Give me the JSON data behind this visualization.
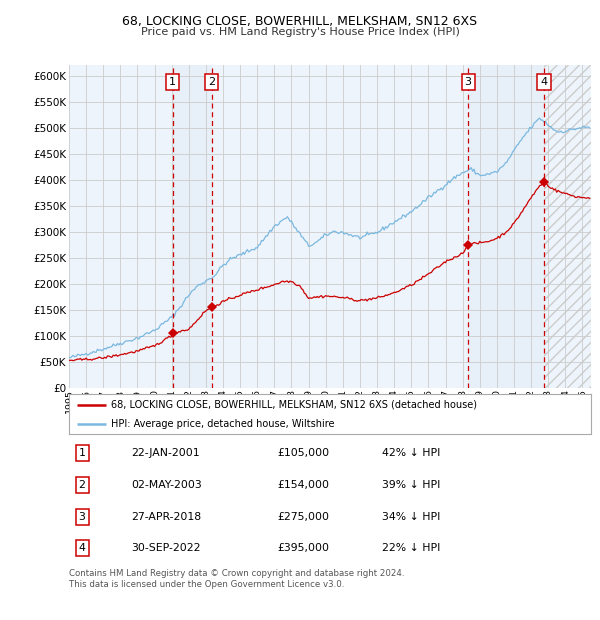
{
  "title": "68, LOCKING CLOSE, BOWERHILL, MELKSHAM, SN12 6XS",
  "subtitle": "Price paid vs. HM Land Registry's House Price Index (HPI)",
  "ylim": [
    0,
    620000
  ],
  "yticks": [
    0,
    50000,
    100000,
    150000,
    200000,
    250000,
    300000,
    350000,
    400000,
    450000,
    500000,
    550000,
    600000
  ],
  "xlim_start": 1995.0,
  "xlim_end": 2025.5,
  "sale_dates_num": [
    2001.06,
    2003.34,
    2018.32,
    2022.75
  ],
  "sale_prices": [
    105000,
    154000,
    275000,
    395000
  ],
  "sale_labels": [
    "1",
    "2",
    "3",
    "4"
  ],
  "hpi_color": "#7ab8e0",
  "price_color": "#cc0000",
  "grid_color": "#cccccc",
  "bg_color": "#ffffff",
  "plot_bg_color": "#eef4fb",
  "legend_line1": "68, LOCKING CLOSE, BOWERHILL, MELKSHAM, SN12 6XS (detached house)",
  "legend_line2": "HPI: Average price, detached house, Wiltshire",
  "table_data": [
    [
      "1",
      "22-JAN-2001",
      "£105,000",
      "42% ↓ HPI"
    ],
    [
      "2",
      "02-MAY-2003",
      "£154,000",
      "39% ↓ HPI"
    ],
    [
      "3",
      "27-APR-2018",
      "£275,000",
      "34% ↓ HPI"
    ],
    [
      "4",
      "30-SEP-2022",
      "£395,000",
      "22% ↓ HPI"
    ]
  ],
  "footer": "Contains HM Land Registry data © Crown copyright and database right 2024.\nThis data is licensed under the Open Government Licence v3.0."
}
